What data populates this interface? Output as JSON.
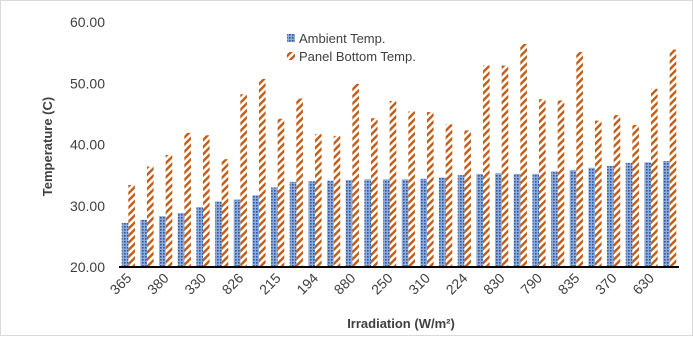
{
  "chart_data": {
    "type": "bar",
    "xlabel": "Irradiation (W/m²)",
    "ylabel": "Temperature (C)",
    "ylim": [
      20,
      60
    ],
    "yticks": [
      "20.00",
      "30.00",
      "40.00",
      "50.00",
      "60.00"
    ],
    "x_tick_labels_shown": [
      "365",
      "380",
      "330",
      "826",
      "215",
      "194",
      "880",
      "250",
      "310",
      "224",
      "830",
      "790",
      "835",
      "370",
      "630"
    ],
    "bar_count": 30,
    "grid": false,
    "legend_position": "top-center",
    "series": [
      {
        "name": "Ambient Temp.",
        "color": "#4472c4",
        "pattern": "dotted",
        "values": [
          27.2,
          27.7,
          28.3,
          28.8,
          29.8,
          30.7,
          31.0,
          31.7,
          33.0,
          33.9,
          34.0,
          34.1,
          34.2,
          34.3,
          34.3,
          34.3,
          34.4,
          34.6,
          35.0,
          35.2,
          35.3,
          35.2,
          35.2,
          35.6,
          35.8,
          36.2,
          36.5,
          37.0,
          37.1,
          37.3
        ]
      },
      {
        "name": "Panel Bottom Temp.",
        "color": "#c55a11",
        "pattern": "diagonal-hatch",
        "values": [
          33.4,
          36.4,
          38.3,
          41.9,
          41.5,
          37.6,
          48.2,
          50.7,
          44.2,
          47.5,
          41.7,
          41.4,
          49.9,
          44.3,
          47.1,
          45.4,
          45.3,
          43.3,
          42.3,
          52.9,
          52.9,
          56.4,
          47.4,
          47.2,
          55.1,
          43.9,
          44.8,
          43.2,
          49.1,
          55.5
        ]
      }
    ]
  }
}
